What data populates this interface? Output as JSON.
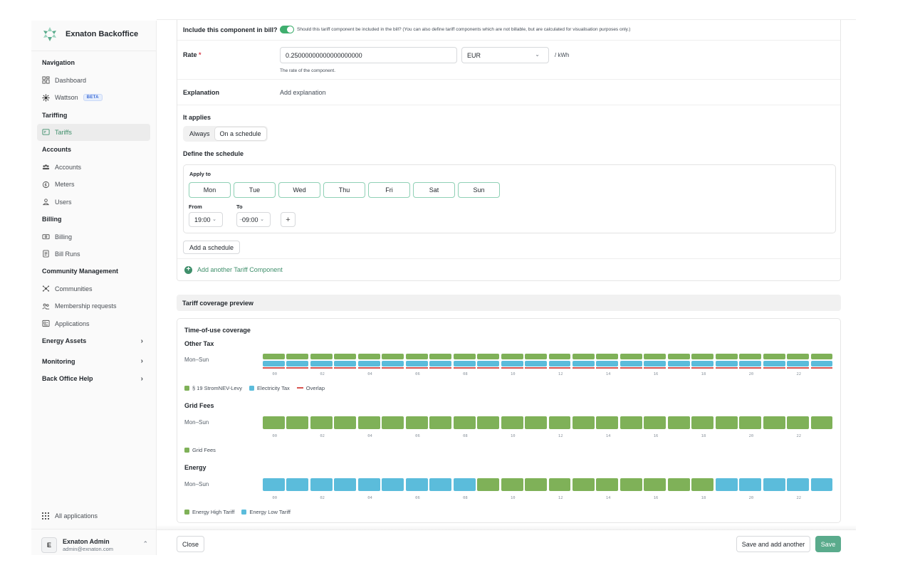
{
  "sidebar": {
    "brand": "Exnaton Backoffice",
    "sections": [
      {
        "title": "Navigation",
        "items": [
          {
            "label": "Dashboard",
            "icon": "dashboard-icon"
          },
          {
            "label": "Wattson",
            "icon": "wattson-icon",
            "badge": "BETA"
          }
        ]
      },
      {
        "title": "Tariffing",
        "items": [
          {
            "label": "Tariffs",
            "icon": "tariffs-icon",
            "active": true
          }
        ]
      },
      {
        "title": "Accounts",
        "items": [
          {
            "label": "Accounts",
            "icon": "accounts-icon"
          },
          {
            "label": "Meters",
            "icon": "meters-icon"
          },
          {
            "label": "Users",
            "icon": "users-icon"
          }
        ]
      },
      {
        "title": "Billing",
        "items": [
          {
            "label": "Billing",
            "icon": "billing-icon"
          },
          {
            "label": "Bill Runs",
            "icon": "bill-runs-icon"
          }
        ]
      },
      {
        "title": "Community Management",
        "items": [
          {
            "label": "Communities",
            "icon": "communities-icon"
          },
          {
            "label": "Membership requests",
            "icon": "membership-icon"
          },
          {
            "label": "Applications",
            "icon": "applications-icon"
          }
        ]
      }
    ],
    "collapsed": [
      "Energy Assets",
      "Monitoring",
      "Back Office Help"
    ],
    "all_apps": "All applications",
    "user": {
      "initial": "E",
      "name": "Exnaton Admin",
      "email": "admin@exnaton.com"
    }
  },
  "form": {
    "include_label": "Include this component in bill?",
    "include_on": true,
    "include_help": "Should this tariff component be included in the bill? (You can also define tariff components which are not billable, but are calculated for visualisation purposes only.)",
    "rate_label": "Rate",
    "rate_required": "*",
    "rate_value": "0.25000000000000000000",
    "currency": "EUR",
    "unit": "/ kWh",
    "rate_help": "The rate of the component.",
    "explanation_label": "Explanation",
    "explanation_placeholder": "Add explanation",
    "applies_label": "It applies",
    "applies_options": [
      "Always",
      "On a schedule"
    ],
    "applies_selected": "On a schedule",
    "define_schedule": "Define the schedule",
    "apply_to": "Apply to",
    "days": [
      "Mon",
      "Tue",
      "Wed",
      "Thu",
      "Fri",
      "Sat",
      "Sun"
    ],
    "from_label": "From",
    "to_label": "To",
    "from_value": "19:00",
    "to_value": "09:00",
    "add_schedule": "Add a schedule",
    "add_component": "Add another Tariff Component"
  },
  "preview": {
    "title": "Tariff coverage preview",
    "subtitle": "Time-of-use coverage",
    "ticks": [
      "00",
      "02",
      "04",
      "06",
      "08",
      "10",
      "12",
      "14",
      "16",
      "18",
      "20",
      "22"
    ],
    "colors": {
      "green": "#7fb158",
      "blue": "#5bbcdb",
      "overlap": "#d9534f"
    },
    "groups": [
      {
        "name": "Other Tax",
        "row_label": "Mon–Sun",
        "kind": "stacked",
        "legend": [
          {
            "label": "§ 19 StromNEV-Levy",
            "color": "#7fb158"
          },
          {
            "label": "Electricity Tax",
            "color": "#5bbcdb"
          },
          {
            "label": "Overlap",
            "color": "#d9534f",
            "line": true
          }
        ],
        "hours": [
          "both",
          "both",
          "both",
          "both",
          "both",
          "both",
          "both",
          "both",
          "both",
          "both",
          "both",
          "both",
          "both",
          "both",
          "both",
          "both",
          "both",
          "both",
          "both",
          "both",
          "both",
          "both",
          "both",
          "both"
        ]
      },
      {
        "name": "Grid Fees",
        "row_label": "Mon–Sun",
        "kind": "single",
        "legend": [
          {
            "label": "Grid Fees",
            "color": "#7fb158"
          }
        ],
        "hours": [
          "g",
          "g",
          "g",
          "g",
          "g",
          "g",
          "g",
          "g",
          "g",
          "g",
          "g",
          "g",
          "g",
          "g",
          "g",
          "g",
          "g",
          "g",
          "g",
          "g",
          "g",
          "g",
          "g",
          "g"
        ]
      },
      {
        "name": "Energy",
        "row_label": "Mon–Sun",
        "kind": "single",
        "legend": [
          {
            "label": "Energy High Tariff",
            "color": "#7fb158"
          },
          {
            "label": "Energy Low Tariff",
            "color": "#5bbcdb"
          }
        ],
        "hours": [
          "b",
          "b",
          "b",
          "b",
          "b",
          "b",
          "b",
          "b",
          "b",
          "g",
          "g",
          "g",
          "g",
          "g",
          "g",
          "g",
          "g",
          "g",
          "g",
          "b",
          "b",
          "b",
          "b",
          "b"
        ]
      }
    ]
  },
  "footer": {
    "close": "Close",
    "save_add": "Save and add another",
    "save": "Save"
  }
}
